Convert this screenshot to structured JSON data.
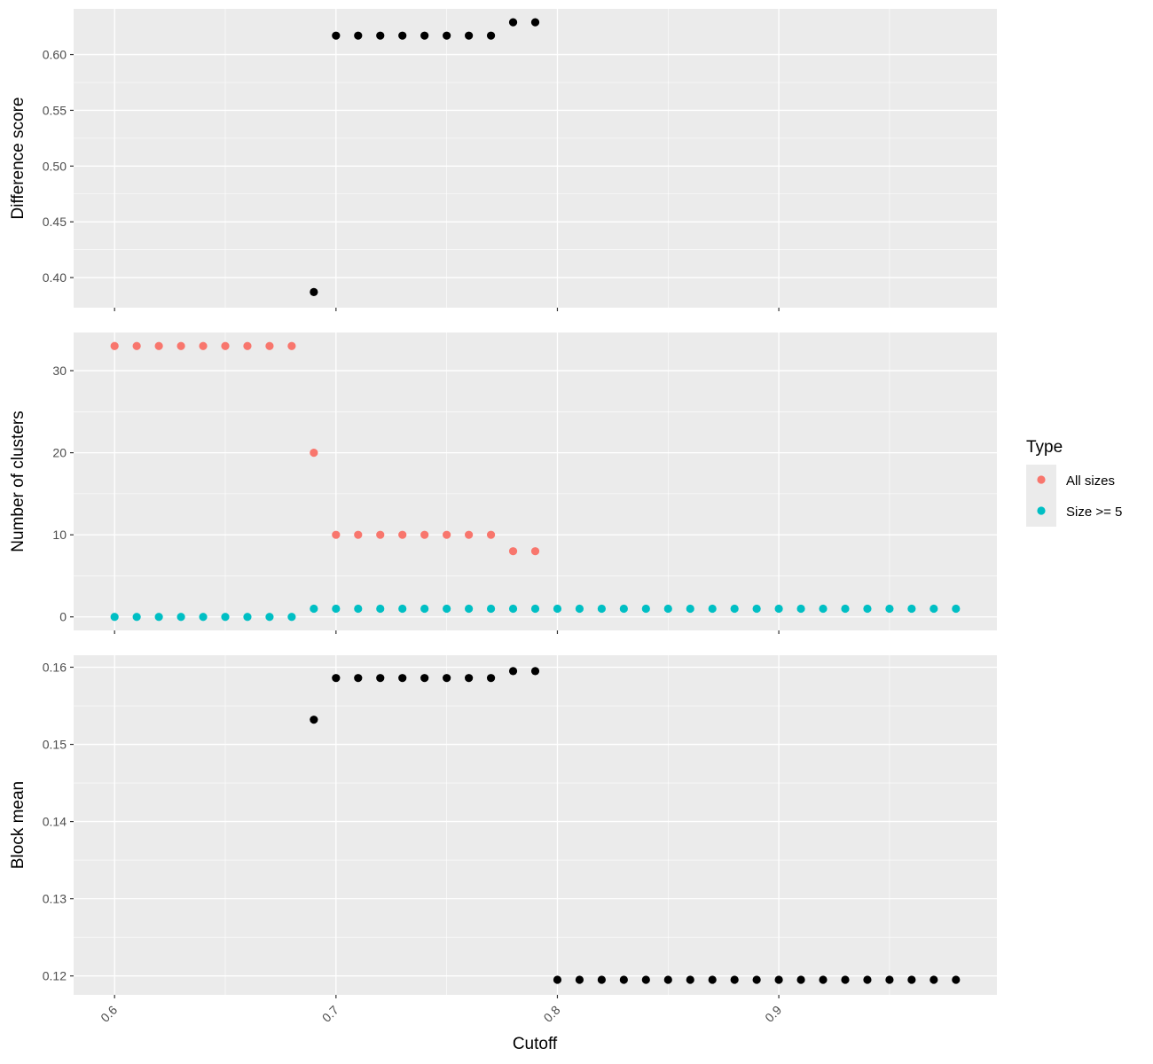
{
  "chart_data": {
    "type": "scatter",
    "xlabel": "Cutoff",
    "x_ticks": [
      0.6,
      0.7,
      0.8,
      0.9
    ],
    "x_tick_labels": [
      "0.6",
      "0.7",
      "0.8",
      "0.9"
    ],
    "xlim": [
      0.5815,
      0.9985
    ],
    "grid": true,
    "legend": {
      "title": "Type",
      "placement": "right",
      "entries": [
        {
          "label": "All sizes",
          "color": "#F8766D"
        },
        {
          "label": "Size >= 5",
          "color": "#00BFC4"
        }
      ]
    },
    "panels": [
      {
        "ylabel": "Difference score",
        "ylim": [
          0.373,
          0.641
        ],
        "y_ticks": [
          0.4,
          0.45,
          0.5,
          0.55,
          0.6
        ],
        "y_tick_labels": [
          "0.40",
          "0.45",
          "0.50",
          "0.55",
          "0.60"
        ],
        "series": [
          {
            "color": "#000000",
            "points": [
              [
                0.69,
                0.387
              ],
              [
                0.7,
                0.617
              ],
              [
                0.71,
                0.617
              ],
              [
                0.72,
                0.617
              ],
              [
                0.73,
                0.617
              ],
              [
                0.74,
                0.617
              ],
              [
                0.75,
                0.617
              ],
              [
                0.76,
                0.617
              ],
              [
                0.77,
                0.617
              ],
              [
                0.78,
                0.629
              ],
              [
                0.79,
                0.629
              ]
            ]
          }
        ]
      },
      {
        "ylabel": "Number of clusters",
        "ylim": [
          -1.65,
          34.65
        ],
        "y_ticks": [
          0,
          10,
          20,
          30
        ],
        "y_tick_labels": [
          "0",
          "10",
          "20",
          "30"
        ],
        "series": [
          {
            "name": "All sizes",
            "color": "#F8766D",
            "points": [
              [
                0.6,
                33
              ],
              [
                0.61,
                33
              ],
              [
                0.62,
                33
              ],
              [
                0.63,
                33
              ],
              [
                0.64,
                33
              ],
              [
                0.65,
                33
              ],
              [
                0.66,
                33
              ],
              [
                0.67,
                33
              ],
              [
                0.68,
                33
              ],
              [
                0.69,
                20
              ],
              [
                0.7,
                10
              ],
              [
                0.71,
                10
              ],
              [
                0.72,
                10
              ],
              [
                0.73,
                10
              ],
              [
                0.74,
                10
              ],
              [
                0.75,
                10
              ],
              [
                0.76,
                10
              ],
              [
                0.77,
                10
              ],
              [
                0.78,
                8
              ],
              [
                0.79,
                8
              ]
            ]
          },
          {
            "name": "Size >= 5",
            "color": "#00BFC4",
            "points": [
              [
                0.6,
                0
              ],
              [
                0.61,
                0
              ],
              [
                0.62,
                0
              ],
              [
                0.63,
                0
              ],
              [
                0.64,
                0
              ],
              [
                0.65,
                0
              ],
              [
                0.66,
                0
              ],
              [
                0.67,
                0
              ],
              [
                0.68,
                0
              ],
              [
                0.69,
                1
              ],
              [
                0.7,
                1
              ],
              [
                0.71,
                1
              ],
              [
                0.72,
                1
              ],
              [
                0.73,
                1
              ],
              [
                0.74,
                1
              ],
              [
                0.75,
                1
              ],
              [
                0.76,
                1
              ],
              [
                0.77,
                1
              ],
              [
                0.78,
                1
              ],
              [
                0.79,
                1
              ],
              [
                0.8,
                1
              ],
              [
                0.81,
                1
              ],
              [
                0.82,
                1
              ],
              [
                0.83,
                1
              ],
              [
                0.84,
                1
              ],
              [
                0.85,
                1
              ],
              [
                0.86,
                1
              ],
              [
                0.87,
                1
              ],
              [
                0.88,
                1
              ],
              [
                0.89,
                1
              ],
              [
                0.9,
                1
              ],
              [
                0.91,
                1
              ],
              [
                0.92,
                1
              ],
              [
                0.93,
                1
              ],
              [
                0.94,
                1
              ],
              [
                0.95,
                1
              ],
              [
                0.96,
                1
              ],
              [
                0.97,
                1
              ],
              [
                0.98,
                1
              ]
            ]
          }
        ]
      },
      {
        "ylabel": "Block mean",
        "ylim": [
          0.11755,
          0.16155
        ],
        "y_ticks": [
          0.12,
          0.13,
          0.14,
          0.15,
          0.16
        ],
        "y_tick_labels": [
          "0.12",
          "0.13",
          "0.14",
          "0.15",
          "0.16"
        ],
        "series": [
          {
            "color": "#000000",
            "points": [
              [
                0.69,
                0.1532
              ],
              [
                0.7,
                0.1586
              ],
              [
                0.71,
                0.1586
              ],
              [
                0.72,
                0.1586
              ],
              [
                0.73,
                0.1586
              ],
              [
                0.74,
                0.1586
              ],
              [
                0.75,
                0.1586
              ],
              [
                0.76,
                0.1586
              ],
              [
                0.77,
                0.1586
              ],
              [
                0.78,
                0.1595
              ],
              [
                0.79,
                0.1595
              ],
              [
                0.8,
                0.1195
              ],
              [
                0.81,
                0.1195
              ],
              [
                0.82,
                0.1195
              ],
              [
                0.83,
                0.1195
              ],
              [
                0.84,
                0.1195
              ],
              [
                0.85,
                0.1195
              ],
              [
                0.86,
                0.1195
              ],
              [
                0.87,
                0.1195
              ],
              [
                0.88,
                0.1195
              ],
              [
                0.89,
                0.1195
              ],
              [
                0.9,
                0.1195
              ],
              [
                0.91,
                0.1195
              ],
              [
                0.92,
                0.1195
              ],
              [
                0.93,
                0.1195
              ],
              [
                0.94,
                0.1195
              ],
              [
                0.95,
                0.1195
              ],
              [
                0.96,
                0.1195
              ],
              [
                0.97,
                0.1195
              ],
              [
                0.98,
                0.1195
              ]
            ]
          }
        ]
      }
    ]
  }
}
